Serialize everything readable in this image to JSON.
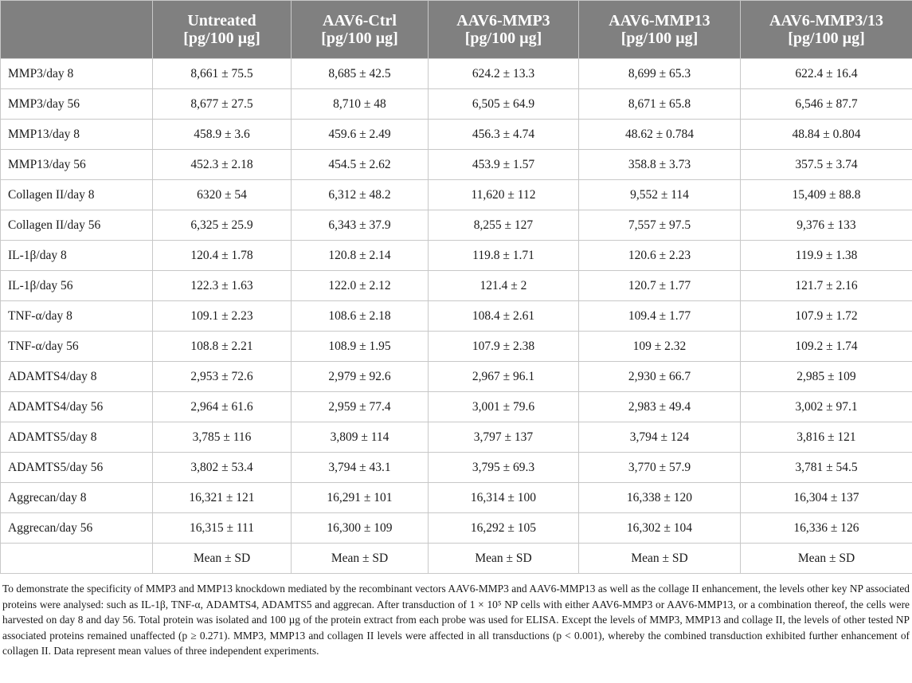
{
  "table": {
    "columns": [
      {
        "name": "Untreated",
        "unit": "[pg/100 µg]"
      },
      {
        "name": "AAV6-Ctrl",
        "unit": "[pg/100 µg]"
      },
      {
        "name": "AAV6-MMP3",
        "unit": "[pg/100 µg]"
      },
      {
        "name": "AAV6-MMP13",
        "unit": "[pg/100 µg]"
      },
      {
        "name": "AAV6-MMP3/13",
        "unit": "[pg/100 µg]"
      }
    ],
    "rows": [
      {
        "label": "MMP3/day 8",
        "cells": [
          "8,661 ± 75.5",
          "8,685 ± 42.5",
          "624.2 ± 13.3",
          "8,699 ± 65.3",
          "622.4 ± 16.4"
        ]
      },
      {
        "label": "MMP3/day 56",
        "cells": [
          "8,677 ± 27.5",
          "8,710 ± 48",
          "6,505 ± 64.9",
          "8,671 ± 65.8",
          "6,546 ± 87.7"
        ]
      },
      {
        "label": "MMP13/day 8",
        "cells": [
          "458.9 ± 3.6",
          "459.6 ± 2.49",
          "456.3 ± 4.74",
          "48.62 ± 0.784",
          "48.84 ± 0.804"
        ]
      },
      {
        "label": "MMP13/day 56",
        "cells": [
          "452.3 ± 2.18",
          "454.5 ± 2.62",
          "453.9 ± 1.57",
          "358.8 ± 3.73",
          "357.5 ± 3.74"
        ]
      },
      {
        "label": "Collagen II/day 8",
        "cells": [
          "6320 ± 54",
          "6,312 ± 48.2",
          "11,620 ± 112",
          "9,552 ± 114",
          "15,409 ± 88.8"
        ]
      },
      {
        "label": "Collagen II/day 56",
        "cells": [
          "6,325 ± 25.9",
          "6,343 ± 37.9",
          "8,255 ± 127",
          "7,557 ± 97.5",
          "9,376 ± 133"
        ]
      },
      {
        "label": "IL-1β/day 8",
        "cells": [
          "120.4 ± 1.78",
          "120.8 ± 2.14",
          "119.8 ± 1.71",
          "120.6 ± 2.23",
          "119.9 ± 1.38"
        ]
      },
      {
        "label": "IL-1β/day 56",
        "cells": [
          "122.3 ± 1.63",
          "122.0 ± 2.12",
          "121.4 ± 2",
          "120.7 ± 1.77",
          "121.7 ± 2.16"
        ]
      },
      {
        "label": "TNF-α/day 8",
        "cells": [
          "109.1 ± 2.23",
          "108.6 ± 2.18",
          "108.4 ± 2.61",
          "109.4 ± 1.77",
          "107.9 ± 1.72"
        ]
      },
      {
        "label": "TNF-α/day 56",
        "cells": [
          "108.8 ± 2.21",
          "108.9 ± 1.95",
          "107.9 ± 2.38",
          "109 ± 2.32",
          "109.2 ± 1.74"
        ]
      },
      {
        "label": "ADAMTS4/day 8",
        "cells": [
          "2,953 ± 72.6",
          "2,979 ± 92.6",
          "2,967 ± 96.1",
          "2,930 ± 66.7",
          "2,985 ± 109"
        ]
      },
      {
        "label": "ADAMTS4/day 56",
        "cells": [
          "2,964 ± 61.6",
          "2,959 ± 77.4",
          "3,001 ± 79.6",
          "2,983 ± 49.4",
          "3,002 ± 97.1"
        ]
      },
      {
        "label": "ADAMTS5/day 8",
        "cells": [
          "3,785 ± 116",
          "3,809 ± 114",
          "3,797 ± 137",
          "3,794 ± 124",
          "3,816 ± 121"
        ]
      },
      {
        "label": "ADAMTS5/day 56",
        "cells": [
          "3,802 ± 53.4",
          "3,794 ± 43.1",
          "3,795 ± 69.3",
          "3,770 ± 57.9",
          "3,781 ± 54.5"
        ]
      },
      {
        "label": "Aggrecan/day 8",
        "cells": [
          "16,321 ± 121",
          "16,291 ± 101",
          "16,314 ± 100",
          "16,338 ± 120",
          "16,304 ± 137"
        ]
      },
      {
        "label": "Aggrecan/day 56",
        "cells": [
          "16,315 ± 111",
          "16,300 ± 109",
          "16,292 ± 105",
          "16,302 ± 104",
          "16,336 ± 126"
        ]
      },
      {
        "label": "",
        "cells": [
          "Mean ± SD",
          "Mean ± SD",
          "Mean ± SD",
          "Mean ± SD",
          "Mean ± SD"
        ]
      }
    ]
  },
  "footnote": "To demonstrate the specificity of MMP3 and MMP13 knockdown mediated by the recombinant vectors AAV6-MMP3 and AAV6-MMP13 as well as the collage II enhancement, the levels other key NP associated proteins were analysed: such as IL-1β, TNF-α, ADAMTS4, ADAMTS5 and aggrecan. After transduction of 1 × 10⁵ NP cells with either AAV6-MMP3 or AAV6-MMP13, or a combination thereof, the cells were harvested on day 8 and day 56. Total protein was isolated and 100 µg of the protein extract from each probe was used for ELISA. Except the levels of MMP3, MMP13 and collage II, the levels of other tested NP associated proteins remained unaffected (p ≥ 0.271). MMP3, MMP13 and collagen II levels were affected in all transductions (p < 0.001), whereby the combined transduction exhibited further enhancement of collagen II. Data represent mean values of three independent experiments."
}
